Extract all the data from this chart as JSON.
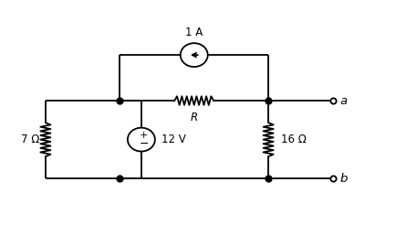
{
  "bg_color": "#ffffff",
  "line_color": "#000000",
  "dot_color": "#000000",
  "label_7ohm": "7 Ω",
  "label_R": "R",
  "label_12V": "12 V",
  "label_16ohm": "16 Ω",
  "label_1A": "1 A",
  "label_a": "a",
  "label_b": "b",
  "figsize": [
    4.34,
    2.46
  ],
  "dpi": 100
}
